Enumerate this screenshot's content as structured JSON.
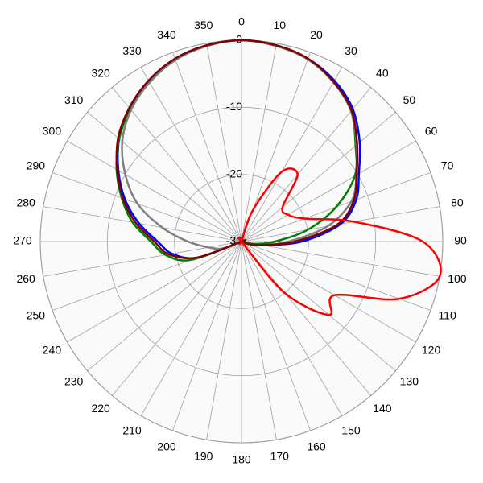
{
  "chart_data": {
    "type": "polar",
    "theta": [
      0,
      10,
      20,
      30,
      40,
      50,
      60,
      70,
      80,
      90,
      100,
      110,
      120,
      130,
      140,
      150,
      160,
      170,
      180,
      190,
      200,
      210,
      220,
      230,
      240,
      250,
      260,
      270,
      280,
      290,
      300,
      310,
      320,
      330,
      340,
      350
    ],
    "thetaticks": [
      0,
      10,
      20,
      30,
      40,
      50,
      60,
      70,
      80,
      90,
      100,
      110,
      120,
      130,
      140,
      150,
      160,
      170,
      180,
      190,
      200,
      210,
      220,
      230,
      240,
      250,
      260,
      270,
      280,
      290,
      300,
      310,
      320,
      330,
      340,
      350
    ],
    "direction": "clockwise",
    "zero": "top",
    "rlim": [
      -30,
      0
    ],
    "rticks": [
      -30,
      -20,
      -10,
      {
        "value": 0,
        "label": "-0"
      }
    ],
    "grid": true,
    "series": [
      {
        "color": "#0000ff",
        "values": [
          0,
          -0.3,
          -1,
          -2.3,
          -4.2,
          -7,
          -9.8,
          -11.8,
          -15,
          -21,
          -27,
          -29.5,
          -30,
          -30,
          -30,
          -30,
          -30,
          -30,
          -30,
          -30,
          -30,
          -30,
          -30,
          -30,
          -30,
          -23,
          -19.5,
          -17.5,
          -14.5,
          -11.5,
          -8.8,
          -6.2,
          -4,
          -2.3,
          -1,
          -0.3
        ]
      },
      {
        "color": "#008000",
        "values": [
          0,
          -0.4,
          -1.1,
          -2.6,
          -4.6,
          -7.8,
          -10.5,
          -15,
          -20,
          -25,
          -28,
          -30,
          -30,
          -30,
          -30,
          -30,
          -30,
          -30,
          -30,
          -30,
          -30,
          -30,
          -30,
          -30,
          -30,
          -22,
          -18.5,
          -16.5,
          -13.5,
          -11,
          -8.5,
          -6.2,
          -4.2,
          -2.6,
          -1.2,
          -0.4
        ]
      },
      {
        "color": "#808080",
        "values": [
          0,
          -0.4,
          -1.1,
          -2.6,
          -4.6,
          -7.6,
          -10.2,
          -12.6,
          -17,
          -23,
          -27,
          -29,
          -30,
          -30,
          -30,
          -30,
          -30,
          -30,
          -30,
          -30,
          -30,
          -30,
          -30,
          -30,
          -30,
          -27,
          -25,
          -22,
          -18,
          -13.5,
          -10,
          -6.8,
          -4.4,
          -2.6,
          -1.2,
          -0.4
        ]
      },
      {
        "color": "#800000",
        "values": [
          0,
          -0.3,
          -1,
          -2.5,
          -4.5,
          -7.5,
          -10.2,
          -12.2,
          -15.5,
          -22,
          -27,
          -29,
          -30,
          -30,
          -30,
          -30,
          -30,
          -30,
          -30,
          -30,
          -30,
          -30,
          -30,
          -30,
          -30,
          -23,
          -19,
          -17,
          -14,
          -11.2,
          -8.6,
          -6,
          -4,
          -2.3,
          -1,
          -0.3
        ]
      },
      {
        "color": "#ff0000",
        "values": [
          -30,
          -30,
          -25,
          -18,
          -17,
          -22,
          -22,
          -20,
          -13,
          -3,
          0,
          -5,
          -14,
          -13,
          -20,
          -30,
          -30,
          -30,
          -30,
          -30,
          -30,
          -30,
          -30,
          -30,
          -30,
          -30,
          -30,
          -30,
          -30,
          -30,
          -30,
          -30,
          -30,
          -30,
          -30,
          -30
        ]
      }
    ]
  }
}
